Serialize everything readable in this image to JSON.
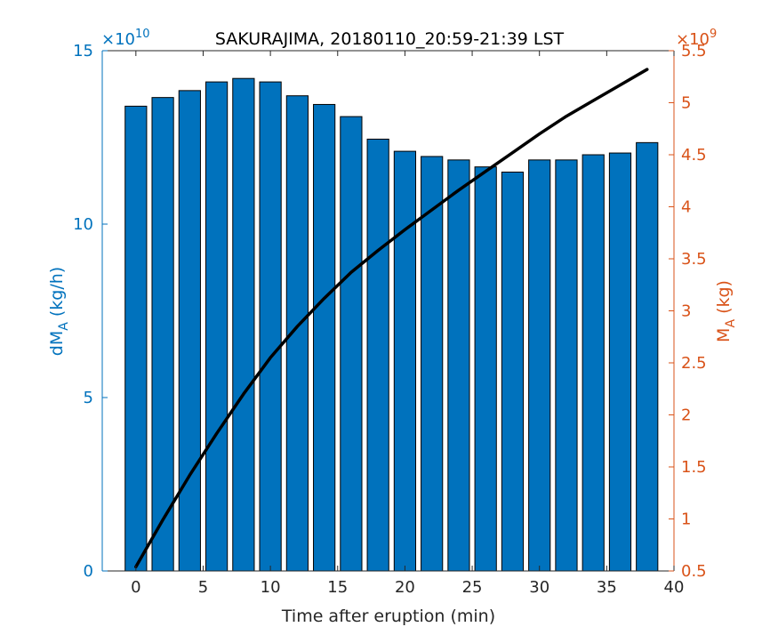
{
  "chart_data": {
    "type": "bar",
    "title": "SAKURAJIMA, 20180110_20:59-21:39 LST",
    "xlabel": "Time after eruption (min)",
    "x_ticks": [
      "0",
      "5",
      "10",
      "15",
      "20",
      "25",
      "30",
      "35",
      "40"
    ],
    "xlim": [
      -2.5,
      40
    ],
    "left_axis": {
      "label_base": "dM",
      "label_sub": "A",
      "label_unit": " (kg/h)",
      "exponent_base": "×10",
      "exponent_power": "10",
      "ylim": [
        0,
        15
      ],
      "ticks": [
        "0",
        "5",
        "10",
        "15"
      ],
      "color": "#0072BD"
    },
    "right_axis": {
      "label_base": "M",
      "label_sub": "A",
      "label_unit": " (kg)",
      "exponent_base": "×10",
      "exponent_power": "9",
      "ylim": [
        0.5,
        5.5
      ],
      "ticks": [
        "0.5",
        "1",
        "1.5",
        "2",
        "2.5",
        "3",
        "3.5",
        "4",
        "4.5",
        "5",
        "5.5"
      ],
      "color": "#D95319"
    },
    "bars": {
      "name": "dM_A",
      "color": "#0072BD",
      "x": [
        0,
        2,
        4,
        6,
        8,
        10,
        12,
        14,
        16,
        18,
        20,
        22,
        24,
        26,
        28,
        30,
        32,
        34,
        36,
        38
      ],
      "values": [
        13.4,
        13.65,
        13.85,
        14.1,
        14.2,
        14.1,
        13.7,
        13.45,
        13.1,
        12.45,
        12.1,
        11.95,
        11.85,
        11.65,
        11.5,
        11.85,
        11.85,
        12.0,
        12.05,
        12.35
      ]
    },
    "line": {
      "name": "M_A",
      "color": "#000000",
      "x": [
        0,
        2,
        4,
        6,
        8,
        10,
        12,
        14,
        16,
        18,
        20,
        22,
        24,
        26,
        28,
        30,
        32,
        34,
        36,
        38
      ],
      "values": [
        0.54,
        0.99,
        1.42,
        1.82,
        2.2,
        2.55,
        2.85,
        3.12,
        3.37,
        3.58,
        3.78,
        3.97,
        4.16,
        4.34,
        4.52,
        4.7,
        4.87,
        5.02,
        5.17,
        5.32
      ]
    }
  }
}
